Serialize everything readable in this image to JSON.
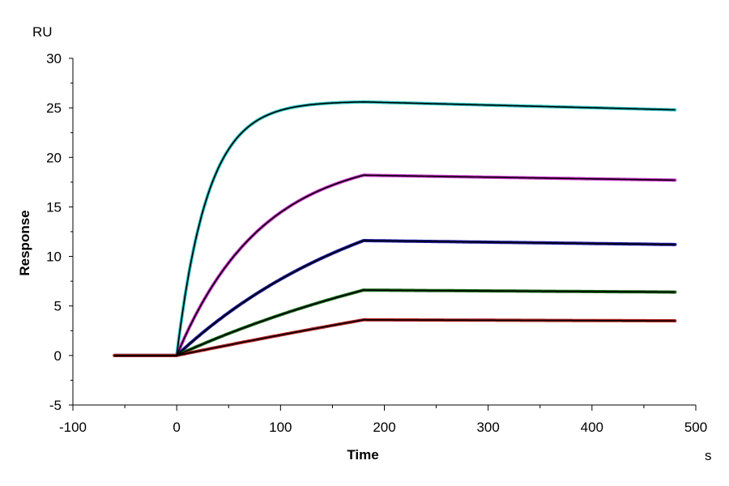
{
  "chart_data": {
    "type": "line",
    "title": "",
    "xlabel": "Time",
    "ylabel": "Response",
    "x_unit": "s",
    "y_unit": "RU",
    "xlim": [
      -100,
      500
    ],
    "ylim": [
      -5,
      30
    ],
    "x_ticks": [
      -100,
      0,
      100,
      200,
      300,
      400,
      500
    ],
    "y_ticks": [
      -5,
      0,
      5,
      10,
      15,
      20,
      25,
      30
    ],
    "grid": false,
    "legend": "none",
    "baseline_start": -60,
    "injection_start": 0,
    "dissociation_start": 180,
    "end_time": 480,
    "series": [
      {
        "color": "#2ec4c4",
        "plateau": 25.6,
        "assoc_shape": 6.0,
        "end_value": 24.8
      },
      {
        "color": "#cc33cc",
        "plateau": 18.2,
        "assoc_shape": 2.2,
        "end_value": 17.7
      },
      {
        "color": "#1a1aa0",
        "plateau": 11.6,
        "assoc_shape": 0.9,
        "end_value": 11.2
      },
      {
        "color": "#1a6b1a",
        "plateau": 6.6,
        "assoc_shape": 0.55,
        "end_value": 6.4
      },
      {
        "color": "#b22222",
        "plateau": 3.6,
        "assoc_shape": 0.15,
        "end_value": 3.5
      }
    ]
  }
}
